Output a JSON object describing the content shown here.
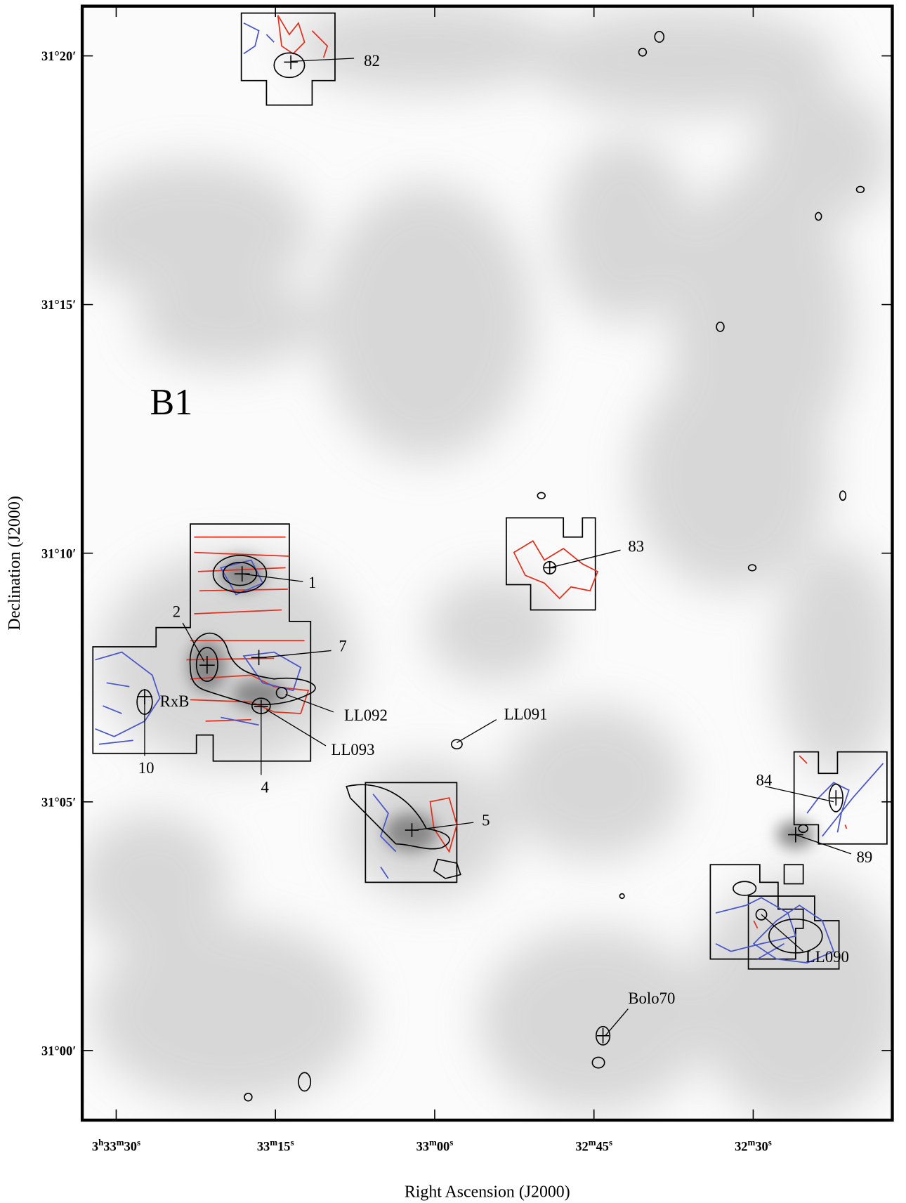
{
  "chart_data": {
    "type": "map",
    "title": "B1",
    "xlabel": "Right Ascension (J2000)",
    "ylabel": "Declination (J2000)",
    "xlim": [
      93.2,
      16.9
    ],
    "xticks": [
      {
        "value": 90,
        "label": "3h33m30s"
      },
      {
        "value": 75,
        "label": "33m15s"
      },
      {
        "value": 60,
        "label": "33m00s"
      },
      {
        "value": 45,
        "label": "32m45s"
      },
      {
        "value": 30,
        "label": "32m30s"
      }
    ],
    "ylim": [
      1858.6,
      1881.0
    ],
    "yticks": [
      {
        "value": 1860,
        "label": "31°00′"
      },
      {
        "value": 1865,
        "label": "31°05′"
      },
      {
        "value": 1870,
        "label": "31°10′"
      },
      {
        "value": 1875,
        "label": "31°15′"
      },
      {
        "value": 1880,
        "label": "31°20′"
      }
    ],
    "annotations": [
      "82",
      "1",
      "2",
      "7",
      "RxB",
      "LL092",
      "LL093",
      "10",
      "4",
      "LL091",
      "5",
      "83",
      "84",
      "LL090",
      "Bolo70",
      "89"
    ]
  }
}
